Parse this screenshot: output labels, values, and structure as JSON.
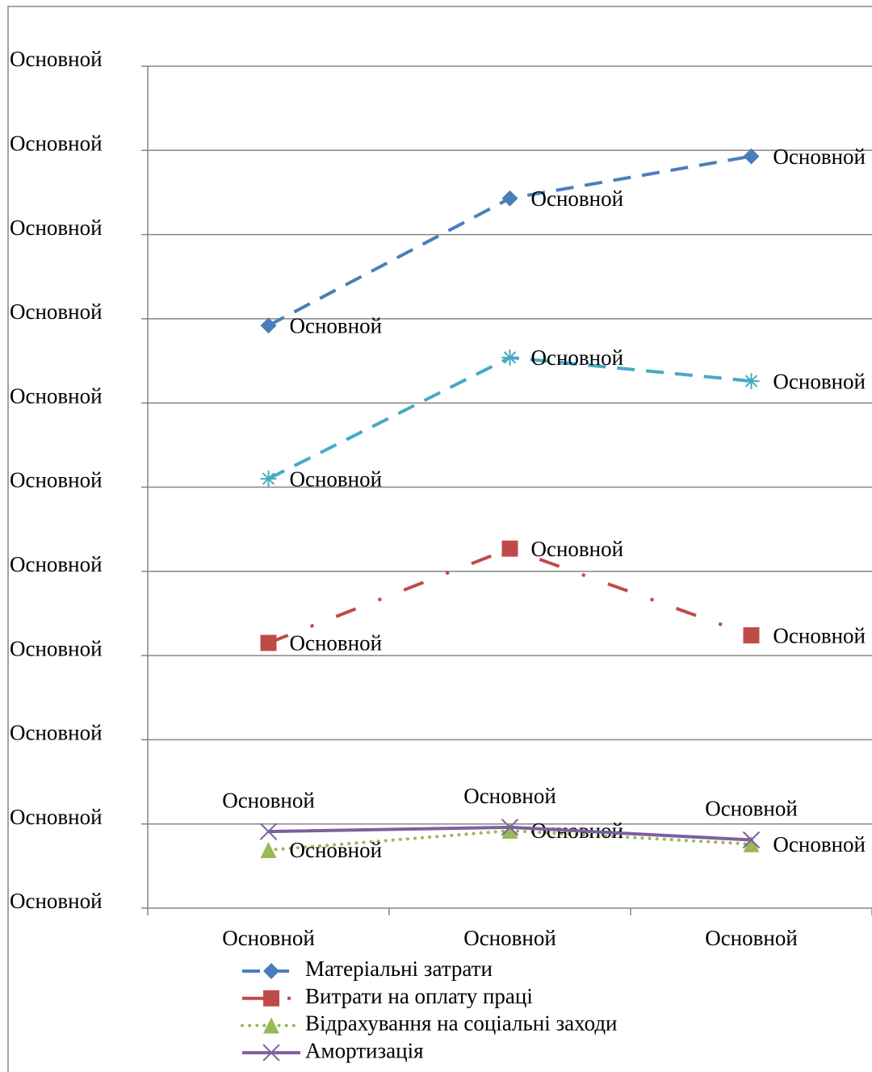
{
  "chart_data": {
    "type": "line",
    "categories": [
      "Основной",
      "Основной",
      "Основной"
    ],
    "ylim": [
      0,
      10
    ],
    "yticks": [
      {
        "value": 0,
        "label": "Основной"
      },
      {
        "value": 1,
        "label": "Основной"
      },
      {
        "value": 2,
        "label": "Основной"
      },
      {
        "value": 3,
        "label": "Основной"
      },
      {
        "value": 4,
        "label": "Основной"
      },
      {
        "value": 5,
        "label": "Основной"
      },
      {
        "value": 6,
        "label": "Основной"
      },
      {
        "value": 7,
        "label": "Основной"
      },
      {
        "value": 8,
        "label": "Основной"
      },
      {
        "value": 9,
        "label": "Основной"
      },
      {
        "value": 10,
        "label": "Основной"
      }
    ],
    "grid": true,
    "legend": "bottom",
    "series": [
      {
        "name": "Матеріальні затрати",
        "color": "#4a7ebb",
        "marker": "diamond",
        "dash": "dashed",
        "values": [
          6.92,
          8.43,
          8.93
        ],
        "value_labels": [
          "Основной",
          "Основной",
          "Основной"
        ]
      },
      {
        "color": "#46aac5",
        "marker": "asterisk",
        "dash": "dashed",
        "values": [
          5.1,
          6.54,
          6.26
        ],
        "value_labels": [
          "Основной",
          "Основной",
          "Основной"
        ]
      },
      {
        "name": "Витрати на оплату праці",
        "color": "#be4b48",
        "marker": "square",
        "dash": "dash-dot",
        "values": [
          3.15,
          4.27,
          3.24
        ],
        "value_labels": [
          "Основной",
          "Основной",
          "Основной"
        ]
      },
      {
        "name": "Відрахування на соціальні заходи",
        "color": "#98b954",
        "marker": "triangle",
        "dash": "dotted",
        "values": [
          0.69,
          0.92,
          0.76
        ],
        "value_labels": [
          "Основной",
          "Основной",
          "Основной"
        ]
      },
      {
        "name": "Амортизація",
        "color": "#7d60a0",
        "marker": "x",
        "dash": "solid",
        "values": [
          0.91,
          0.96,
          0.81
        ],
        "value_labels": [
          "Основной",
          "Основной",
          "Основной"
        ]
      }
    ]
  }
}
